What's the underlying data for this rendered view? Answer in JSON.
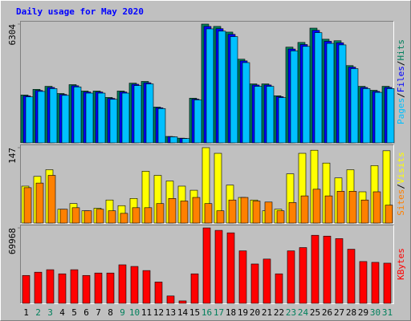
{
  "chart_data": [
    {
      "type": "bar",
      "title": "Daily usage for May 2020",
      "ylim": [
        0,
        6304
      ],
      "yticks": [
        6304
      ],
      "legend_separator": "/",
      "series": [
        {
          "name": "Hits",
          "color": "#00805c",
          "values": [
            2540,
            2840,
            3000,
            2620,
            3090,
            2750,
            2750,
            2410,
            2750,
            3170,
            3260,
            1900,
            340,
            250,
            2370,
            6304,
            6180,
            5880,
            4440,
            3130,
            3130,
            2500,
            5080,
            5330,
            6090,
            5500,
            5420,
            4100,
            3000,
            2790,
            3000
          ]
        },
        {
          "name": "Files",
          "color": "#0000ff",
          "values": [
            2490,
            2780,
            2940,
            2570,
            3030,
            2700,
            2700,
            2360,
            2700,
            3110,
            3190,
            1860,
            330,
            240,
            2320,
            6180,
            6060,
            5760,
            4350,
            3070,
            3070,
            2450,
            4980,
            5220,
            5970,
            5390,
            5310,
            4020,
            2940,
            2730,
            2940
          ]
        },
        {
          "name": "Pages",
          "color": "#00c0ff",
          "values": [
            2440,
            2730,
            2880,
            2520,
            2970,
            2640,
            2640,
            2310,
            2640,
            3040,
            3130,
            1820,
            320,
            230,
            2280,
            6050,
            5930,
            5640,
            4260,
            3000,
            3000,
            2400,
            4880,
            5120,
            5850,
            5280,
            5200,
            3940,
            2880,
            2680,
            2880
          ]
        }
      ]
    },
    {
      "type": "bar",
      "ylim": [
        0,
        147
      ],
      "yticks": [
        147
      ],
      "legend_separator": "/",
      "series": [
        {
          "name": "Visits",
          "color": "#ffff00",
          "values": [
            72,
            91,
            104,
            27,
            38,
            24,
            29,
            45,
            34,
            48,
            101,
            93,
            82,
            72,
            64,
            147,
            136,
            74,
            50,
            45,
            24,
            27,
            96,
            136,
            142,
            117,
            88,
            104,
            61,
            112,
            141
          ]
        },
        {
          "name": "Sites",
          "color": "#ff8000",
          "values": [
            69,
            78,
            93,
            27,
            30,
            24,
            27,
            24,
            19,
            30,
            30,
            38,
            48,
            43,
            50,
            38,
            24,
            45,
            50,
            43,
            41,
            24,
            40,
            53,
            66,
            53,
            62,
            62,
            45,
            61,
            35
          ]
        }
      ]
    },
    {
      "type": "bar",
      "ylim": [
        0,
        69968
      ],
      "yticks": [
        69968
      ],
      "series": [
        {
          "name": "KBytes",
          "color": "#ff0000",
          "values": [
            25860,
            28900,
            31200,
            27380,
            31200,
            25860,
            28140,
            28140,
            35740,
            34220,
            30420,
            19780,
            6840,
            2280,
            27380,
            69968,
            67680,
            65400,
            48680,
            36500,
            41060,
            27380,
            48680,
            51720,
            63120,
            62360,
            60080,
            50200,
            38780,
            38020,
            37260
          ]
        }
      ],
      "categories": [
        "1",
        "2",
        "3",
        "4",
        "5",
        "6",
        "7",
        "8",
        "9",
        "10",
        "11",
        "12",
        "13",
        "14",
        "15",
        "16",
        "17",
        "18",
        "19",
        "20",
        "21",
        "22",
        "23",
        "24",
        "25",
        "26",
        "27",
        "28",
        "29",
        "30",
        "31"
      ],
      "category_label_colors": [
        "#000000",
        "#00805c",
        "#00805c",
        "#000000",
        "#000000",
        "#000000",
        "#000000",
        "#000000",
        "#00805c",
        "#00805c",
        "#000000",
        "#000000",
        "#000000",
        "#000000",
        "#000000",
        "#00805c",
        "#00805c",
        "#000000",
        "#000000",
        "#000000",
        "#000000",
        "#000000",
        "#00805c",
        "#00805c",
        "#000000",
        "#000000",
        "#000000",
        "#000000",
        "#000000",
        "#00805c",
        "#00805c"
      ]
    }
  ]
}
